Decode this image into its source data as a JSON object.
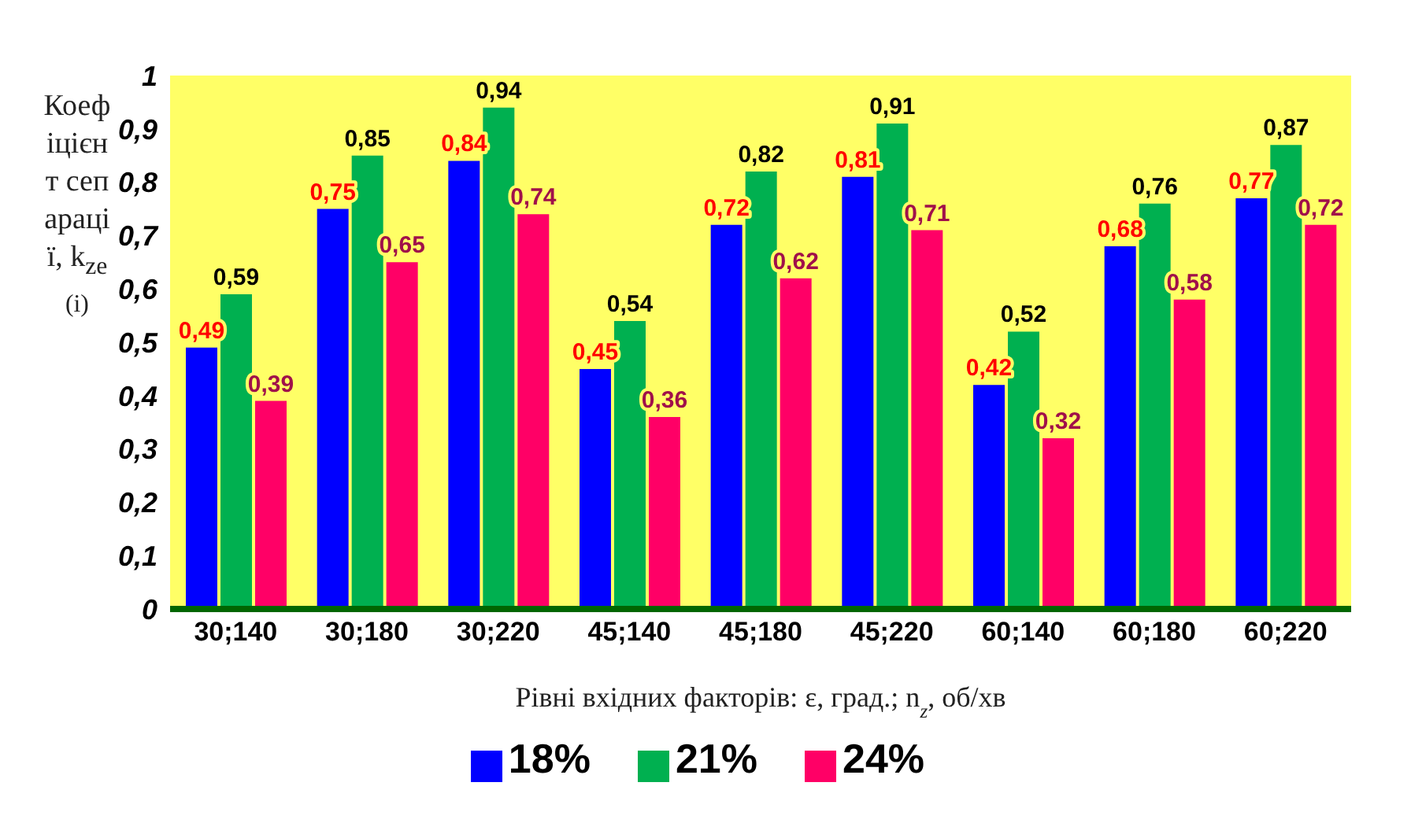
{
  "chart_data": {
    "type": "bar",
    "categories": [
      "30;140",
      "30;180",
      "30;220",
      "45;140",
      "45;180",
      "45;220",
      "60;140",
      "60;180",
      "60;220"
    ],
    "series": [
      {
        "name": "18%",
        "color": "#0000ff",
        "values": [
          0.49,
          0.75,
          0.84,
          0.45,
          0.72,
          0.81,
          0.42,
          0.68,
          0.77
        ],
        "value_labels": [
          "0,49",
          "0,75",
          "0,84",
          "0,45",
          "0,72",
          "0,81",
          "0,42",
          "0,68",
          "0,77"
        ]
      },
      {
        "name": "21%",
        "color": "#00b050",
        "values": [
          0.59,
          0.85,
          0.94,
          0.54,
          0.82,
          0.91,
          0.52,
          0.76,
          0.87
        ],
        "value_labels": [
          "0,59",
          "0,85",
          "0,94",
          "0,54",
          "0,82",
          "0,91",
          "0,52",
          "0,76",
          "0,87"
        ]
      },
      {
        "name": "24%",
        "color": "#ff0066",
        "values": [
          0.39,
          0.65,
          0.74,
          0.36,
          0.62,
          0.71,
          0.32,
          0.58,
          0.72
        ],
        "value_labels": [
          "0,39",
          "0,65",
          "0,74",
          "0,36",
          "0,62",
          "0,71",
          "0,32",
          "0,58",
          "0,72"
        ]
      }
    ],
    "ylabel": "Коефіцієнт сепарації, k$_{ze}$$^{(i)}$",
    "xlabel": "Рівні вхідних факторів: ε, град.; n$_{z}$, об/хв",
    "ylim": [
      0,
      1
    ],
    "yticks": [
      {
        "value": 0,
        "label": "0"
      },
      {
        "value": 0.1,
        "label": "0,1"
      },
      {
        "value": 0.2,
        "label": "0,2"
      },
      {
        "value": 0.3,
        "label": "0,3"
      },
      {
        "value": 0.4,
        "label": "0,4"
      },
      {
        "value": 0.5,
        "label": "0,5"
      },
      {
        "value": 0.6,
        "label": "0,6"
      },
      {
        "value": 0.7,
        "label": "0,7"
      },
      {
        "value": 0.8,
        "label": "0,8"
      },
      {
        "value": 0.9,
        "label": "0,9"
      },
      {
        "value": 1,
        "label": "1"
      }
    ],
    "grid": false,
    "legend": "bottom"
  }
}
